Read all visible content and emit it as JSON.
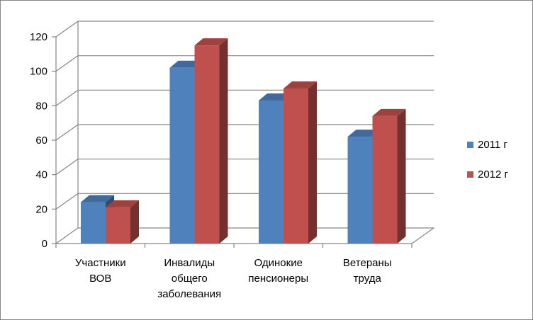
{
  "chart_data": {
    "type": "bar",
    "title": "",
    "xlabel": "",
    "ylabel": "",
    "ylim": [
      0,
      120
    ],
    "yticks": [
      0,
      20,
      40,
      60,
      80,
      100,
      120
    ],
    "grid": true,
    "legend_position": "right",
    "categories": [
      [
        "Участники",
        "ВОВ"
      ],
      [
        "Инвалиды",
        "общего",
        "заболевания"
      ],
      [
        "Одинокие",
        "пенсионеры"
      ],
      [
        "Ветераны",
        "труда"
      ]
    ],
    "series": [
      {
        "name": "2011 г",
        "color": "#4F81BD",
        "values": [
          24,
          102,
          83,
          62
        ]
      },
      {
        "name": "2012 г",
        "color": "#C0504D",
        "values": [
          21,
          115,
          90,
          74
        ]
      }
    ]
  }
}
